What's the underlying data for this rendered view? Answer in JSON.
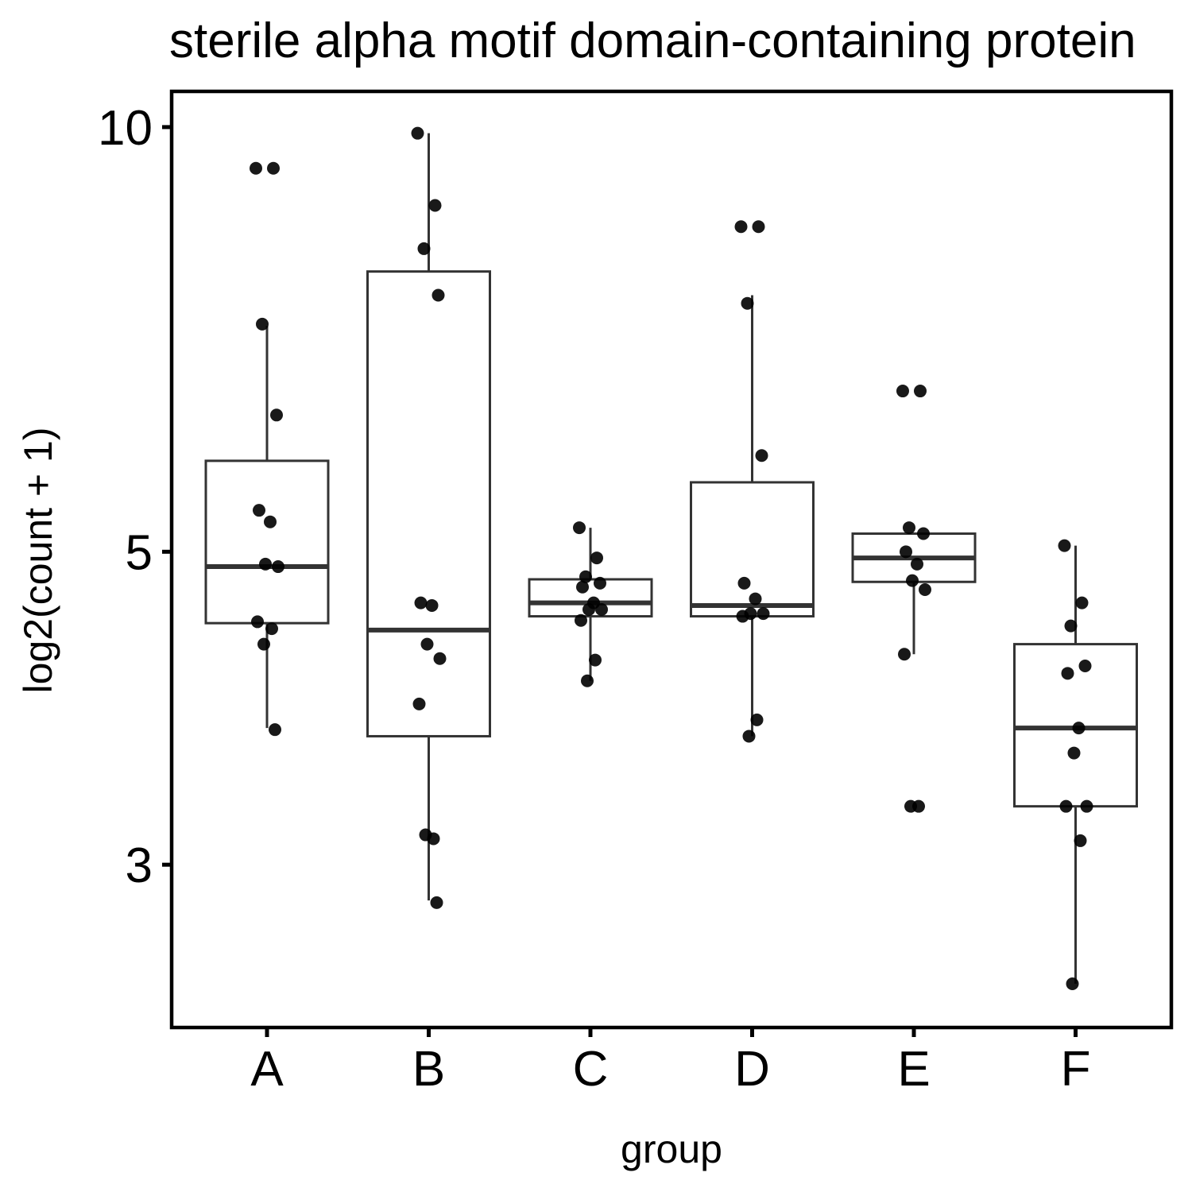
{
  "chart_data": {
    "type": "box",
    "title": "sterile alpha motif domain-containing protein",
    "xlabel": "group",
    "ylabel": "log2(count + 1)",
    "y_scale": "log",
    "ylim": [
      2.3,
      10.6
    ],
    "yticks": [
      {
        "value": 3,
        "label": "3"
      },
      {
        "value": 5,
        "label": "5"
      },
      {
        "value": 10,
        "label": "10"
      }
    ],
    "categories": [
      "A",
      "B",
      "C",
      "D",
      "E",
      "F"
    ],
    "boxes": [
      {
        "group": "A",
        "whisker_low": 3.75,
        "q1": 4.45,
        "median": 4.88,
        "q3": 5.8,
        "whisker_high": 7.23
      },
      {
        "group": "B",
        "whisker_low": 2.83,
        "q1": 3.7,
        "median": 4.4,
        "q3": 7.9,
        "whisker_high": 9.9
      },
      {
        "group": "C",
        "whisker_low": 4.05,
        "q1": 4.5,
        "median": 4.6,
        "q3": 4.78,
        "whisker_high": 5.2
      },
      {
        "group": "D",
        "whisker_low": 3.7,
        "q1": 4.5,
        "median": 4.58,
        "q3": 5.6,
        "whisker_high": 7.6
      },
      {
        "group": "E",
        "whisker_low": 4.23,
        "q1": 4.76,
        "median": 4.95,
        "q3": 5.15,
        "whisker_high": 5.15
      },
      {
        "group": "F",
        "whisker_low": 2.47,
        "q1": 3.3,
        "median": 3.75,
        "q3": 4.3,
        "whisker_high": 5.05
      }
    ],
    "points": [
      {
        "group": "A",
        "y": [
          9.35,
          9.35,
          7.25,
          6.25,
          5.35,
          5.25,
          4.9,
          4.88,
          4.46,
          4.41,
          4.3,
          3.74
        ]
      },
      {
        "group": "B",
        "y": [
          9.9,
          8.8,
          8.2,
          7.6,
          4.6,
          4.58,
          4.3,
          4.2,
          3.9,
          3.13,
          3.15,
          2.82
        ]
      },
      {
        "group": "C",
        "y": [
          5.2,
          4.95,
          4.8,
          4.75,
          4.72,
          4.6,
          4.55,
          4.55,
          4.47,
          4.19,
          4.05
        ]
      },
      {
        "group": "D",
        "y": [
          8.5,
          8.5,
          7.5,
          5.85,
          4.75,
          4.63,
          4.52,
          4.52,
          4.5,
          3.8,
          3.7
        ]
      },
      {
        "group": "E",
        "y": [
          6.5,
          6.5,
          5.2,
          5.15,
          5.0,
          4.9,
          4.77,
          4.7,
          4.23,
          3.3,
          3.3
        ]
      },
      {
        "group": "F",
        "y": [
          5.05,
          4.6,
          4.43,
          4.15,
          4.1,
          3.75,
          3.6,
          3.3,
          3.3,
          3.12,
          2.47
        ]
      }
    ],
    "colors": {
      "box_stroke": "#333333",
      "point": "#000000",
      "frame": "#000000",
      "background": "#ffffff"
    },
    "grid": false,
    "legend": "none"
  }
}
